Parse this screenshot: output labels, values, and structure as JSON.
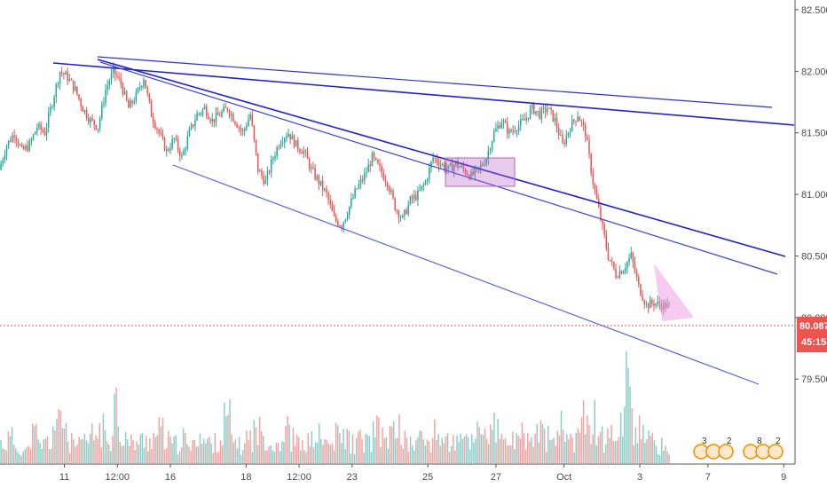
{
  "chart_data": {
    "type": "candlestick",
    "title": "",
    "xlabel": "",
    "ylabel": "",
    "ylim": [
      79.3,
      82.55
    ],
    "y_ticks": [
      "82.500",
      "82.000",
      "81.500",
      "81.000",
      "80.500",
      "80.000",
      "79.500"
    ],
    "x_ticks": [
      {
        "label": "11",
        "bar": 8
      },
      {
        "label": "12:00",
        "bar": 15
      },
      {
        "label": "16",
        "bar": 22
      },
      {
        "label": "18",
        "bar": 32
      },
      {
        "label": "12:00",
        "bar": 39
      },
      {
        "label": "23",
        "bar": 46
      },
      {
        "label": "25",
        "bar": 56
      },
      {
        "label": "27",
        "bar": 65
      },
      {
        "label": "Oct",
        "bar": 74
      },
      {
        "label": "3",
        "bar": 84
      },
      {
        "label": "7",
        "bar": 93
      },
      {
        "label": "9",
        "bar": 103
      }
    ],
    "ohlc_path": [
      81.2,
      81.4,
      81.5,
      81.35,
      81.4,
      81.55,
      81.5,
      81.75,
      82.0,
      81.95,
      81.85,
      81.7,
      81.6,
      81.55,
      81.85,
      82.0,
      81.9,
      81.7,
      81.8,
      81.95,
      81.65,
      81.5,
      81.35,
      81.45,
      81.3,
      81.5,
      81.65,
      81.7,
      81.6,
      81.65,
      81.7,
      81.6,
      81.5,
      81.65,
      81.2,
      81.1,
      81.3,
      81.45,
      81.5,
      81.4,
      81.35,
      81.2,
      81.1,
      81.0,
      80.8,
      80.75,
      80.9,
      81.05,
      81.15,
      81.3,
      81.2,
      81.1,
      80.9,
      80.8,
      80.95,
      81.0,
      81.1,
      81.3,
      81.25,
      81.2,
      81.25,
      81.2,
      81.15,
      81.2,
      81.3,
      81.5,
      81.6,
      81.5,
      81.55,
      81.6,
      81.7,
      81.65,
      81.7,
      81.6,
      81.4,
      81.55,
      81.65,
      81.5,
      81.1,
      80.8,
      80.5,
      80.35,
      80.4,
      80.5,
      80.25,
      80.1,
      80.12,
      80.1,
      80.09
    ],
    "current_price": "80.087",
    "countdown": "45:15",
    "volume": [
      28,
      34,
      22,
      18,
      40,
      26,
      30,
      52,
      60,
      28,
      24,
      30,
      38,
      46,
      34,
      86,
      40,
      28,
      30,
      32,
      36,
      44,
      30,
      26,
      34,
      22,
      42,
      30,
      28,
      34,
      60,
      32,
      24,
      36,
      44,
      40,
      28,
      30,
      46,
      34,
      24,
      30,
      38,
      30,
      26,
      38,
      36,
      28,
      32,
      30,
      44,
      36,
      40,
      52,
      30,
      28,
      34,
      30,
      40,
      36,
      30,
      28,
      34,
      32,
      60,
      38,
      48,
      30,
      32,
      28,
      38,
      32,
      44,
      36,
      30,
      50,
      40,
      32,
      86,
      60,
      46,
      34,
      40,
      64,
      120,
      48,
      36,
      30,
      24,
      20
    ],
    "up_color": "#26a69a",
    "down_color": "#ef5350",
    "grid": false,
    "legend": "none"
  },
  "badges": [
    {
      "left": "3",
      "right": "2"
    },
    {
      "left": "8",
      "right": "2"
    }
  ]
}
